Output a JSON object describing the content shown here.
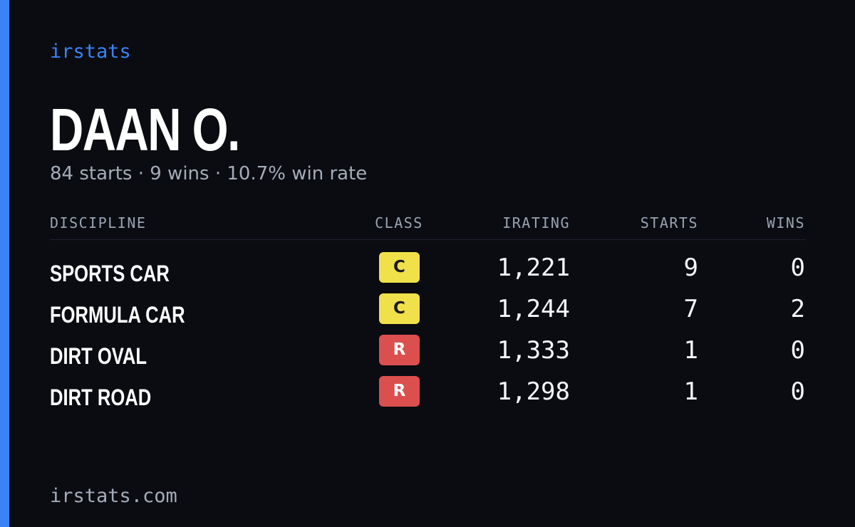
{
  "brand": "irstats",
  "driver": {
    "name": "DAAN O.",
    "summary": "84 starts · 9 wins · 10.7% win rate"
  },
  "table": {
    "headers": {
      "discipline": "DISCIPLINE",
      "class": "CLASS",
      "irating": "IRATING",
      "starts": "STARTS",
      "wins": "WINS"
    },
    "rows": [
      {
        "discipline": "SPORTS CAR",
        "class": "C",
        "irating": "1,221",
        "starts": "9",
        "wins": "0"
      },
      {
        "discipline": "FORMULA CAR",
        "class": "C",
        "irating": "1,244",
        "starts": "7",
        "wins": "2"
      },
      {
        "discipline": "DIRT OVAL",
        "class": "R",
        "irating": "1,333",
        "starts": "1",
        "wins": "0"
      },
      {
        "discipline": "DIRT ROAD",
        "class": "R",
        "irating": "1,298",
        "starts": "1",
        "wins": "0"
      }
    ]
  },
  "footer": {
    "url": "irstats.com"
  },
  "colors": {
    "background": "#0a0c12",
    "accent": "#3b82f6",
    "class_c": "#f0e14a",
    "class_r": "#dc4f4f",
    "muted_text": "#a5acb8"
  }
}
